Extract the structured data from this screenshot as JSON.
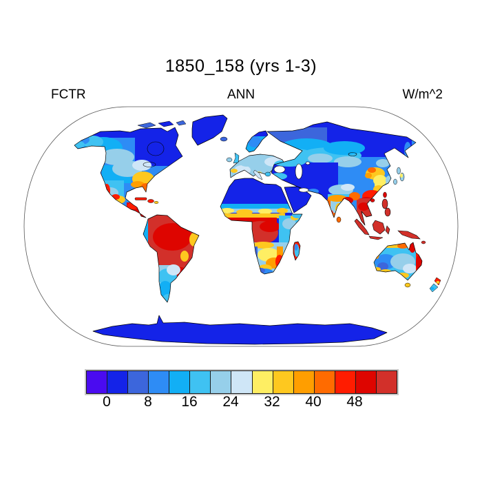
{
  "title": "1850_158 (yrs 1-3)",
  "header": {
    "left_label": "FCTR",
    "center_label": "ANN",
    "right_label": "W/m^2"
  },
  "colorbar": {
    "tick_labels": [
      "0",
      "8",
      "16",
      "24",
      "32",
      "40",
      "48"
    ],
    "cell_colors": [
      "#4A0BF0",
      "#1423E8",
      "#3C66DC",
      "#2E8CF5",
      "#12AFF5",
      "#3FC2F2",
      "#96CFEA",
      "#CFE6F7",
      "#FEEE63",
      "#FEC81F",
      "#FF9E00",
      "#FF6B00",
      "#FF1C00",
      "#DE0500",
      "#D2302A"
    ],
    "separator_color": "#1a1a1a",
    "frame_color": "#c9c9c9"
  },
  "map": {
    "projection": "robinson",
    "ocean_color": "#ffffff",
    "coastline_color": "#000000",
    "outline_color": "#555555"
  },
  "chart_data": {
    "type": "heatmap",
    "subtype": "global-choropleth-map",
    "title": "1850_158 (yrs 1-3)",
    "variable": "FCTR",
    "time_average": "ANN",
    "units": "W/m^2",
    "legend_position": "bottom",
    "colorbar_ticks": [
      0,
      8,
      16,
      24,
      32,
      40,
      48
    ],
    "value_per_cell": 4,
    "value_range_per_cell": [
      [
        "<0"
      ],
      [
        "0-4"
      ],
      [
        "4-8"
      ],
      [
        "8-12"
      ],
      [
        "12-16"
      ],
      [
        "16-20"
      ],
      [
        "20-24"
      ],
      [
        "24-28"
      ],
      [
        "28-32"
      ],
      [
        "32-36"
      ],
      [
        "36-40"
      ],
      [
        "40-44"
      ],
      [
        "44-48"
      ],
      [
        "48-52"
      ],
      [
        ">52"
      ]
    ],
    "region_values": {
      "amazon_basin": ">52",
      "congo_basin": ">52",
      "southeast_asia_and_indonesia": ">52",
      "new_guinea": ">52",
      "central_america_caribbean": "44-52",
      "sahara_desert": "0-4",
      "arabian_peninsula": "0-4",
      "central_asia_gobi": "0-4",
      "siberia_north": "0-8",
      "canada_north_quebec": "0-8",
      "greenland": "0-4",
      "antarctica": "0-4",
      "europe": "16-28",
      "us_southeast": "32-44",
      "us_plains": "12-24",
      "east_china": "28-44",
      "india": "16-44",
      "sahel_band": "12-40",
      "east_africa": "16-32",
      "southern_africa": "20-40",
      "madagascar": "16-48",
      "australia_interior": "8-24",
      "australia_north_and_east_coast": "32-52",
      "argentina_patagonia": "12-24",
      "ocean": "masked (white)"
    }
  }
}
